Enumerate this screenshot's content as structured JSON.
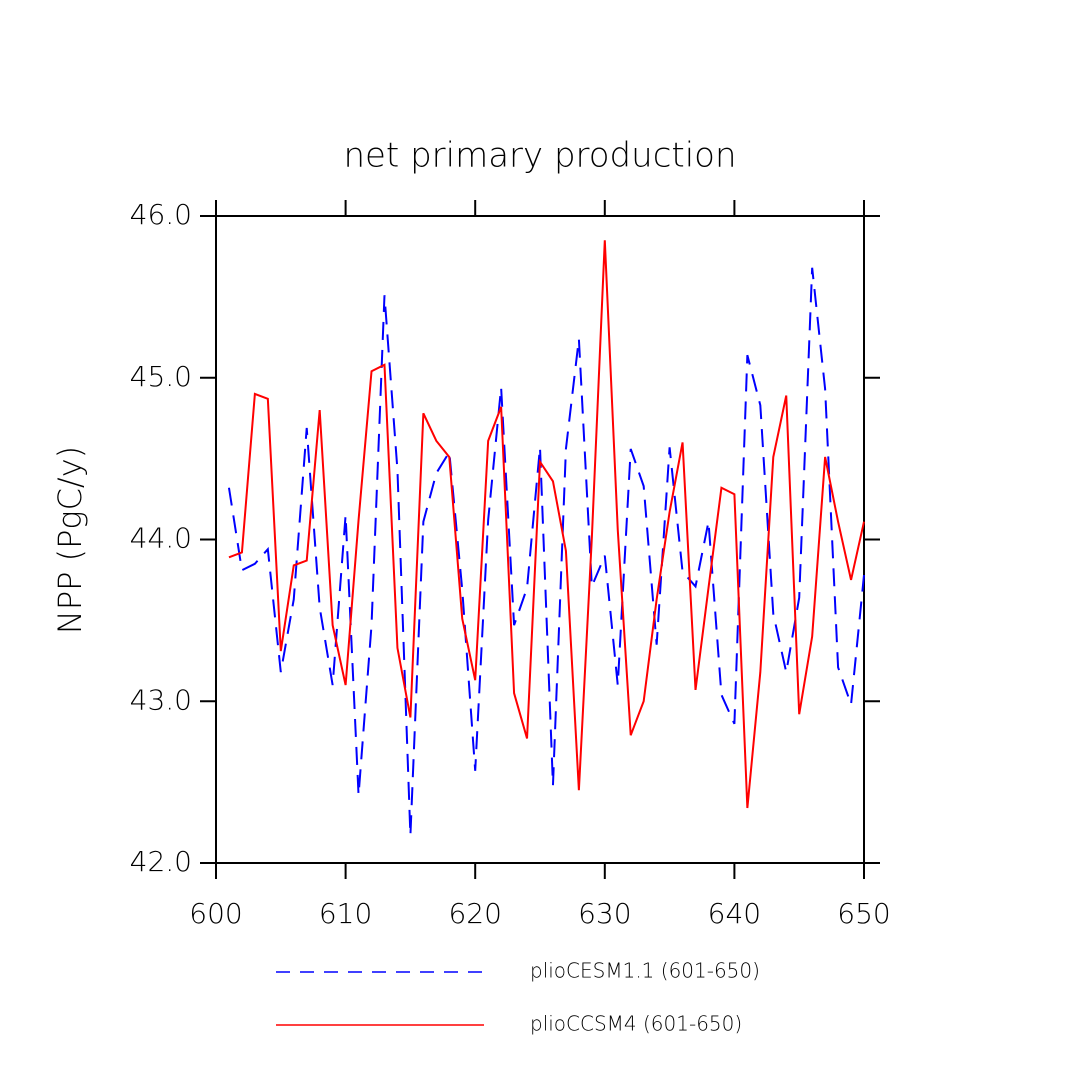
{
  "chart_data": {
    "type": "line",
    "title": "net primary production",
    "y_label": "NPP  (PgC/y)",
    "x": [
      601,
      602,
      603,
      604,
      605,
      606,
      607,
      608,
      609,
      610,
      611,
      612,
      613,
      614,
      615,
      616,
      617,
      618,
      619,
      620,
      621,
      622,
      623,
      624,
      625,
      626,
      627,
      628,
      629,
      630,
      631,
      632,
      633,
      634,
      635,
      636,
      637,
      638,
      639,
      640,
      641,
      642,
      643,
      644,
      645,
      646,
      647,
      648,
      649,
      650
    ],
    "series": [
      {
        "name": "plioCESM1.1 (601-650)",
        "color": "#0000ff",
        "dashed": true,
        "values": [
          44.32,
          43.81,
          43.85,
          43.94,
          43.18,
          43.63,
          44.69,
          43.58,
          43.1,
          44.15,
          42.42,
          43.47,
          45.51,
          44.43,
          42.17,
          44.11,
          44.41,
          44.54,
          43.69,
          42.57,
          44.12,
          44.94,
          43.47,
          43.7,
          44.57,
          42.48,
          44.56,
          45.24,
          43.71,
          43.9,
          43.1,
          44.56,
          44.33,
          43.35,
          44.57,
          43.8,
          43.71,
          44.11,
          43.04,
          42.86,
          45.14,
          44.83,
          43.54,
          43.18,
          43.64,
          45.68,
          44.93,
          43.21,
          42.98,
          43.78
        ]
      },
      {
        "name": "plioCCSM4 (601-650)",
        "color": "#ff0000",
        "dashed": false,
        "values": [
          43.89,
          43.92,
          44.9,
          44.87,
          43.31,
          43.84,
          43.87,
          44.8,
          43.47,
          43.1,
          44.12,
          45.04,
          45.08,
          43.33,
          42.9,
          44.78,
          44.61,
          44.51,
          43.51,
          43.13,
          44.61,
          44.82,
          43.05,
          42.77,
          44.48,
          44.36,
          43.93,
          42.45,
          44.01,
          45.85,
          44.06,
          42.79,
          43.0,
          43.63,
          44.17,
          44.6,
          43.07,
          43.7,
          44.32,
          44.28,
          42.34,
          43.18,
          44.51,
          44.89,
          42.92,
          43.4,
          44.51,
          44.11,
          43.75,
          44.11
        ]
      }
    ],
    "xlim": [
      600,
      650
    ],
    "xticks": [
      600,
      610,
      620,
      630,
      640,
      650
    ],
    "ylim": [
      42,
      46
    ],
    "yticks": [
      {
        "value": 42,
        "label": "42.0"
      },
      {
        "value": 43,
        "label": "43.0"
      },
      {
        "value": 44,
        "label": "44.0"
      },
      {
        "value": 45,
        "label": "45.0"
      },
      {
        "value": 46,
        "label": "46.0"
      }
    ]
  }
}
